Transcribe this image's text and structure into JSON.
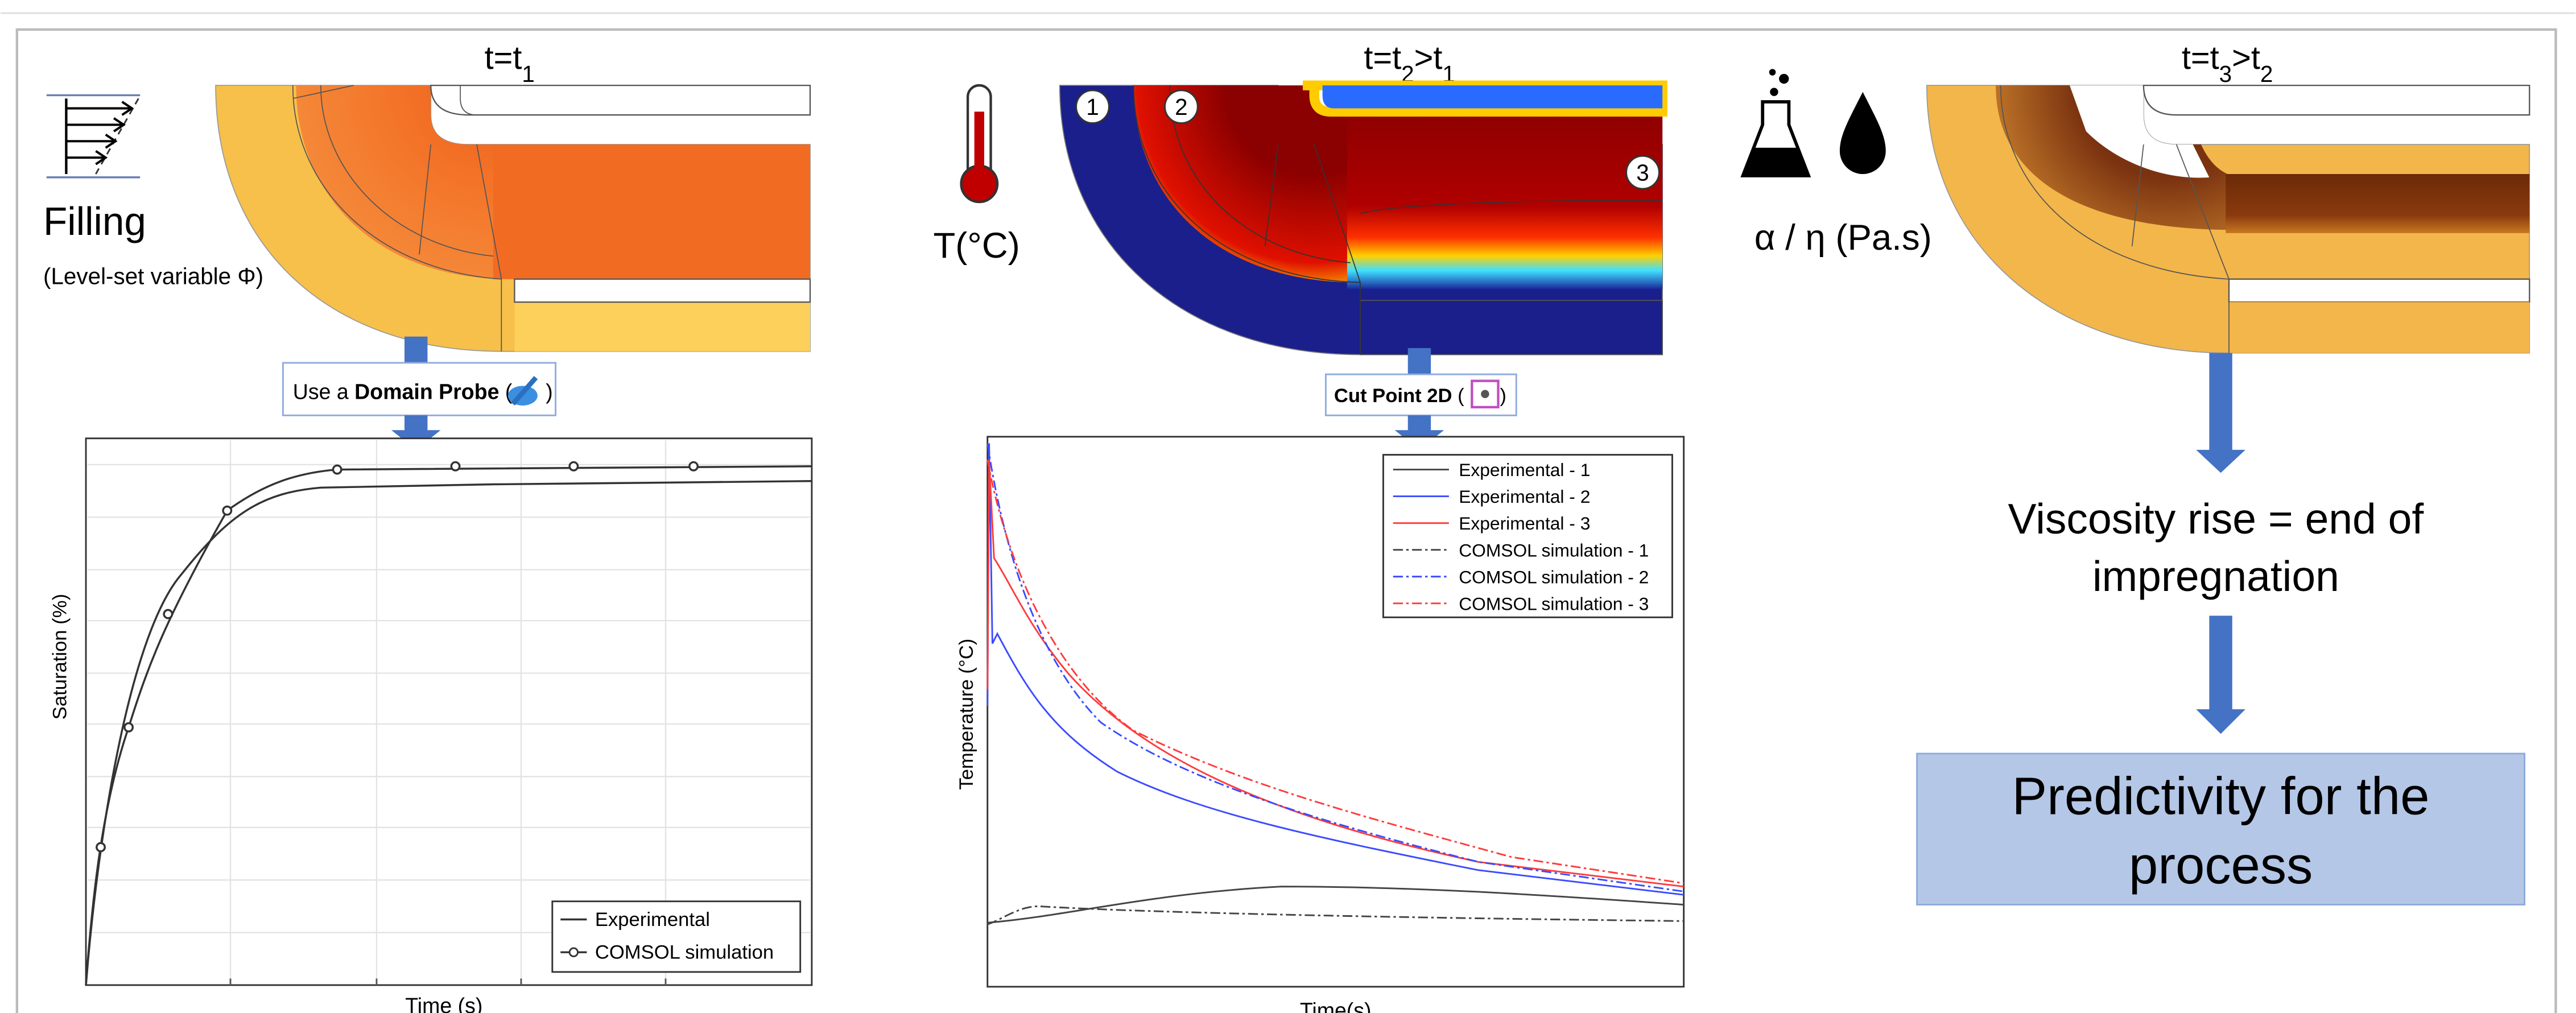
{
  "panels": [
    {
      "title_parts": [
        {
          "text": "t=t"
        },
        {
          "text": "1",
          "sub": true
        }
      ],
      "label": "Filling",
      "sublabel": "(Level-set variable Φ)",
      "tool": {
        "prefix": "Use a ",
        "name": "Domain Probe",
        "open": " (",
        "close": ")"
      }
    },
    {
      "title_parts": [
        {
          "text": "t=t"
        },
        {
          "text": "2",
          "sub": true
        },
        {
          "text": ">t"
        },
        {
          "text": "1",
          "sub": true
        }
      ],
      "label": "T(°C)",
      "tool": {
        "name": "Cut Point 2D",
        "open": " (",
        "close": " )"
      },
      "markers": [
        "1",
        "2",
        "3"
      ]
    },
    {
      "title_parts": [
        {
          "text": "t=t"
        },
        {
          "text": "3",
          "sub": true
        },
        {
          "text": ">t"
        },
        {
          "text": "2",
          "sub": true
        }
      ],
      "label": "α / η (Pa.s)"
    }
  ],
  "charts": [
    {
      "ylabel": "Saturation (%)",
      "xlabel": "Time (s)",
      "series": [
        {
          "name": "Experimental",
          "color": "#333333"
        },
        {
          "name": "COMSOL simulation",
          "color": "#333333"
        }
      ]
    },
    {
      "ylabel": "Temperature (°C)",
      "xlabel": "Time(s)",
      "series": [
        {
          "name": "Experimental - 1",
          "color": "#444444",
          "dash": false
        },
        {
          "name": "Experimental - 2",
          "color": "#3b4bff",
          "dash": false
        },
        {
          "name": "Experimental - 3",
          "color": "#ff3b3b",
          "dash": false
        },
        {
          "name": "COMSOL simulation - 1",
          "color": "#444444",
          "dash": true
        },
        {
          "name": "COMSOL simulation - 2",
          "color": "#3b4bff",
          "dash": true
        },
        {
          "name": "COMSOL simulation - 3",
          "color": "#ff3b3b",
          "dash": true
        }
      ]
    }
  ],
  "conclusion_lines": [
    "Viscosity rise = end of",
    "impregnation"
  ],
  "result_lines": [
    "Predictivity for the",
    "process"
  ]
}
